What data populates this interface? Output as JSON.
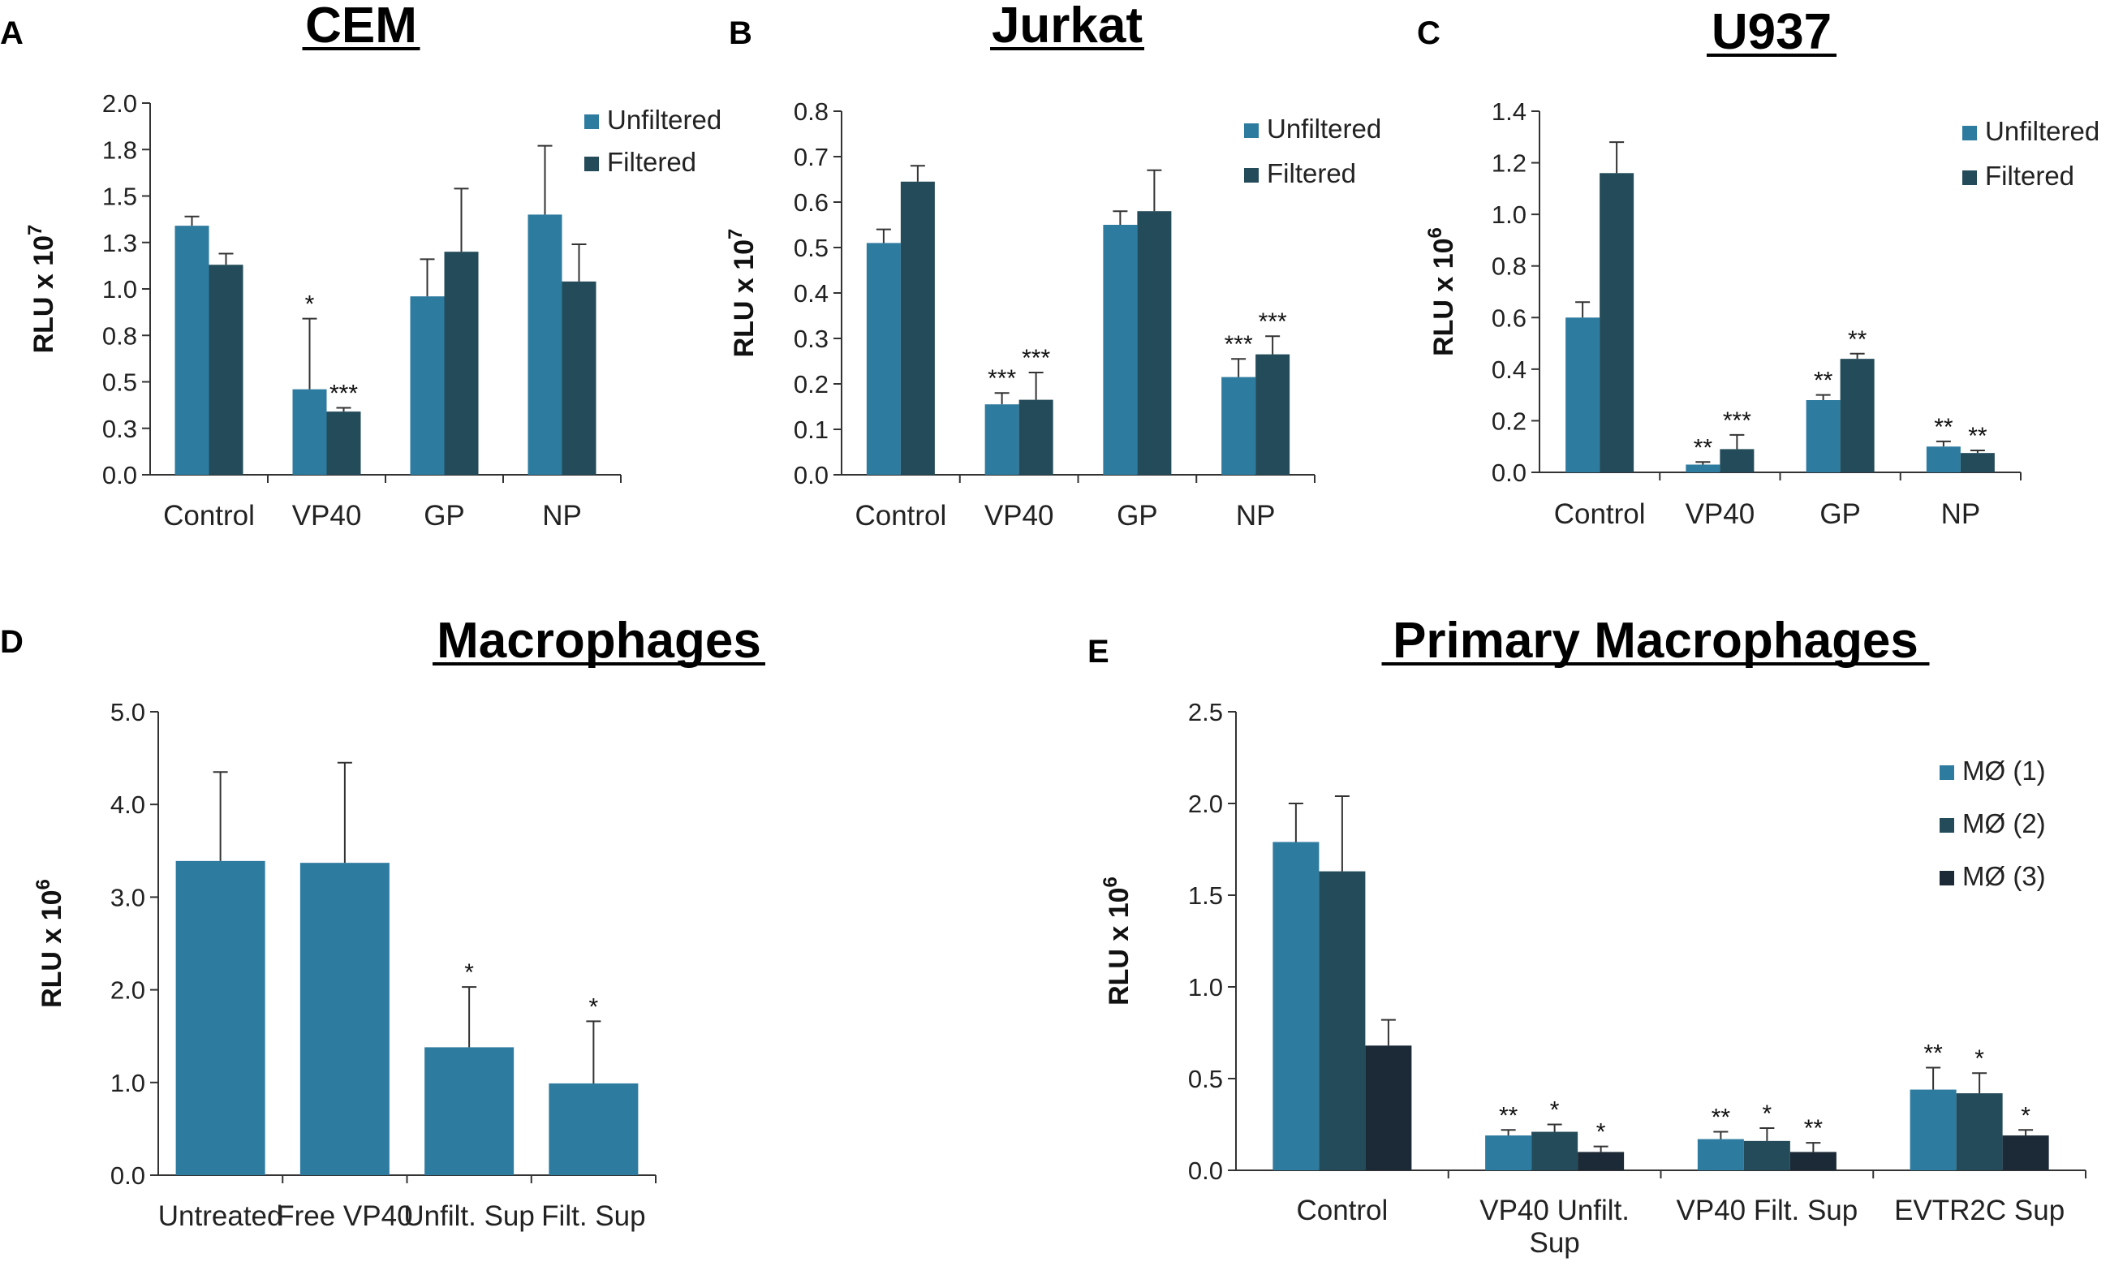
{
  "colors": {
    "series1": "#2e7ba0",
    "series2": "#234b5a",
    "series3": "#1c2a37",
    "axis": "#333333",
    "error": "#333333"
  },
  "chart_data": [
    {
      "type": "bar",
      "panel": "A",
      "title": "CEM",
      "ylabel": "RLU x 10",
      "ylabel_exp": "7",
      "ylim": [
        0,
        2.0
      ],
      "yticks": [
        0.0,
        0.25,
        0.5,
        0.75,
        1.0,
        1.25,
        1.5,
        1.75,
        2.0
      ],
      "ytick_labels": [
        "0.0",
        "0.3",
        "0.5",
        "0.8",
        "1.0",
        "1.3",
        "1.5",
        "1.8",
        "2.0"
      ],
      "categories": [
        "Control",
        "VP40",
        "GP",
        "NP"
      ],
      "series": [
        {
          "name": "Unfiltered",
          "values": [
            1.34,
            0.46,
            0.96,
            1.4
          ],
          "errors": [
            0.05,
            0.38,
            0.2,
            0.37
          ],
          "sig": [
            "",
            "*",
            "",
            ""
          ]
        },
        {
          "name": "Filtered",
          "values": [
            1.13,
            0.34,
            1.2,
            1.04
          ],
          "errors": [
            0.06,
            0.02,
            0.34,
            0.2
          ],
          "sig": [
            "",
            "***",
            "",
            ""
          ]
        }
      ]
    },
    {
      "type": "bar",
      "panel": "B",
      "title": "Jurkat",
      "ylabel": "RLU x 10",
      "ylabel_exp": "7",
      "ylim": [
        0,
        0.8
      ],
      "yticks": [
        0.0,
        0.1,
        0.2,
        0.3,
        0.4,
        0.5,
        0.6,
        0.7,
        0.8
      ],
      "ytick_labels": [
        "0.0",
        "0.1",
        "0.2",
        "0.3",
        "0.4",
        "0.5",
        "0.6",
        "0.7",
        "0.8"
      ],
      "categories": [
        "Control",
        "VP40",
        "GP",
        "NP"
      ],
      "series": [
        {
          "name": "Unfiltered",
          "values": [
            0.51,
            0.155,
            0.55,
            0.215
          ],
          "errors": [
            0.03,
            0.025,
            0.03,
            0.04
          ],
          "sig": [
            "",
            "***",
            "",
            "***"
          ]
        },
        {
          "name": "Filtered",
          "values": [
            0.645,
            0.165,
            0.58,
            0.265
          ],
          "errors": [
            0.035,
            0.06,
            0.09,
            0.04
          ],
          "sig": [
            "",
            "***",
            "",
            "***"
          ]
        }
      ]
    },
    {
      "type": "bar",
      "panel": "C",
      "title": "U937",
      "ylabel": "RLU x 10",
      "ylabel_exp": "6",
      "ylim": [
        0,
        1.4
      ],
      "yticks": [
        0.0,
        0.2,
        0.4,
        0.6,
        0.8,
        1.0,
        1.2,
        1.4
      ],
      "ytick_labels": [
        "0.0",
        "0.2",
        "0.4",
        "0.6",
        "0.8",
        "1.0",
        "1.2",
        "1.4"
      ],
      "categories": [
        "Control",
        "VP40",
        "GP",
        "NP"
      ],
      "series": [
        {
          "name": "Unfiltered",
          "values": [
            0.6,
            0.03,
            0.28,
            0.1
          ],
          "errors": [
            0.06,
            0.01,
            0.02,
            0.02
          ],
          "sig": [
            "",
            "**",
            "**",
            "**"
          ]
        },
        {
          "name": "Filtered",
          "values": [
            1.16,
            0.09,
            0.44,
            0.075
          ],
          "errors": [
            0.12,
            0.055,
            0.02,
            0.01
          ],
          "sig": [
            "",
            "***",
            "**",
            "**"
          ]
        }
      ]
    },
    {
      "type": "bar",
      "panel": "D",
      "title": "Macrophages",
      "ylabel": "RLU x 10",
      "ylabel_exp": "6",
      "ylim": [
        0,
        5.0
      ],
      "yticks": [
        0.0,
        1.0,
        2.0,
        3.0,
        4.0,
        5.0
      ],
      "ytick_labels": [
        "0.0",
        "1.0",
        "2.0",
        "3.0",
        "4.0",
        "5.0"
      ],
      "categories": [
        "Untreated",
        "Free VP40",
        "Unfilt. Sup",
        "Filt. Sup"
      ],
      "series": [
        {
          "name": "",
          "values": [
            3.39,
            3.37,
            1.38,
            0.99
          ],
          "errors": [
            0.96,
            1.08,
            0.65,
            0.67
          ],
          "sig": [
            "",
            "",
            "*",
            "*"
          ]
        }
      ]
    },
    {
      "type": "bar",
      "panel": "E",
      "title": "Primary Macrophages",
      "ylabel": "RLU x 10",
      "ylabel_exp": "6",
      "ylim": [
        0,
        2.5
      ],
      "yticks": [
        0.0,
        0.5,
        1.0,
        1.5,
        2.0,
        2.5
      ],
      "ytick_labels": [
        "0.0",
        "0.5",
        "1.0",
        "1.5",
        "2.0",
        "2.5"
      ],
      "categories": [
        "Control",
        "VP40 Unfilt.\nSup",
        "VP40 Filt. Sup",
        "EVTR2C Sup"
      ],
      "series": [
        {
          "name": "MØ (1)",
          "values": [
            1.79,
            0.19,
            0.17,
            0.44
          ],
          "errors": [
            0.21,
            0.03,
            0.04,
            0.12
          ],
          "sig": [
            "",
            "**",
            "**",
            "**"
          ]
        },
        {
          "name": "MØ (2)",
          "values": [
            1.63,
            0.21,
            0.16,
            0.42
          ],
          "errors": [
            0.41,
            0.04,
            0.07,
            0.11
          ],
          "sig": [
            "",
            "*",
            "*",
            "*"
          ]
        },
        {
          "name": "MØ (3)",
          "values": [
            0.68,
            0.1,
            0.1,
            0.19
          ],
          "errors": [
            0.14,
            0.03,
            0.05,
            0.03
          ],
          "sig": [
            "",
            "*",
            "**",
            "*"
          ]
        }
      ]
    }
  ]
}
